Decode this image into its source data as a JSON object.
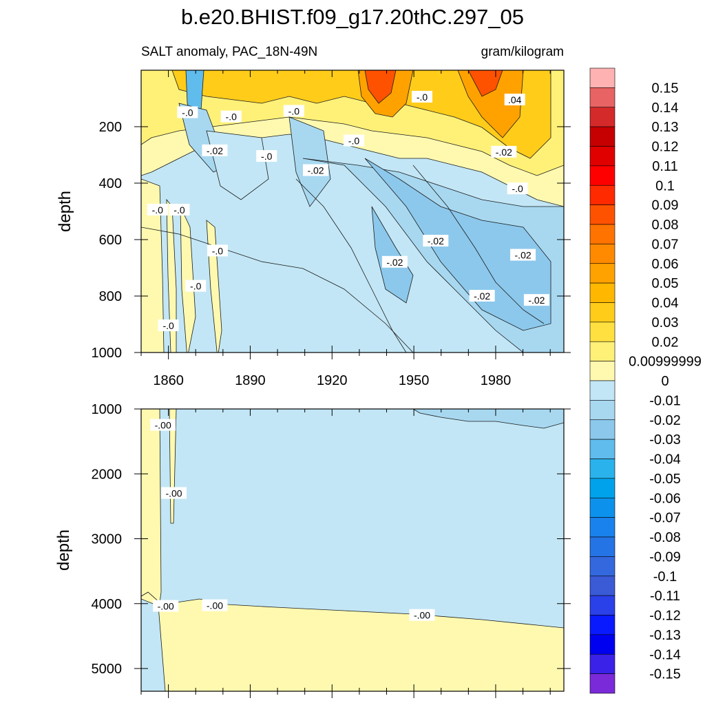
{
  "title": "b.e20.BHIST.f09_g17.20thC.297_05",
  "chart_data": [
    {
      "type": "heatmap",
      "panel": "upper",
      "subtitle_left": "SALT anomaly, PAC_18N-49N",
      "subtitle_right": "gram/kilogram",
      "ylabel": "depth",
      "xlabel": "",
      "xlim": [
        1850,
        2005
      ],
      "ylim": [
        1000,
        0
      ],
      "x_ticks": [
        "1860",
        "1890",
        "1920",
        "1950",
        "1980"
      ],
      "y_ticks": [
        "200",
        "400",
        "600",
        "800",
        "1000"
      ],
      "contour_labels": [
        {
          "text": "-.0",
          "x": 1867,
          "y": 150
        },
        {
          "text": "-.0",
          "x": 1883,
          "y": 165
        },
        {
          "text": "-.0",
          "x": 1906,
          "y": 145
        },
        {
          "text": "-.0",
          "x": 1953,
          "y": 95
        },
        {
          "text": ".04",
          "x": 1987,
          "y": 105
        },
        {
          "text": "-.02",
          "x": 1877,
          "y": 285
        },
        {
          "text": "-.0",
          "x": 1896,
          "y": 305
        },
        {
          "text": "-.0",
          "x": 1928,
          "y": 250
        },
        {
          "text": "-.02",
          "x": 1914,
          "y": 355
        },
        {
          "text": "-.02",
          "x": 1983,
          "y": 290
        },
        {
          "text": "-.0",
          "x": 1988,
          "y": 420
        },
        {
          "text": "-.0",
          "x": 1856,
          "y": 495
        },
        {
          "text": "-.0",
          "x": 1864,
          "y": 495
        },
        {
          "text": "-.0",
          "x": 1878,
          "y": 640
        },
        {
          "text": "-.02",
          "x": 1943,
          "y": 680
        },
        {
          "text": "-.02",
          "x": 1958,
          "y": 605
        },
        {
          "text": "-.02",
          "x": 1990,
          "y": 655
        },
        {
          "text": "-.0",
          "x": 1870,
          "y": 765
        },
        {
          "text": "-.02",
          "x": 1975,
          "y": 800
        },
        {
          "text": "-.02",
          "x": 1995,
          "y": 815
        },
        {
          "text": "-.0",
          "x": 1860,
          "y": 905
        }
      ]
    },
    {
      "type": "heatmap",
      "panel": "lower",
      "ylabel": "depth",
      "xlabel": "",
      "xlim": [
        1850,
        2005
      ],
      "ylim": [
        5350,
        1000
      ],
      "y_ticks": [
        "1000",
        "2000",
        "3000",
        "4000",
        "5000"
      ],
      "contour_labels": [
        {
          "text": "-.00",
          "x": 1858,
          "y": 1250
        },
        {
          "text": "-.00",
          "x": 1862,
          "y": 2300
        },
        {
          "text": "-.00",
          "x": 1859,
          "y": 4040
        },
        {
          "text": "-.00",
          "x": 1877,
          "y": 4030
        },
        {
          "text": "-.00",
          "x": 1953,
          "y": 4180
        }
      ]
    }
  ],
  "colorbar": {
    "labels": [
      "0.15",
      "0.14",
      "0.13",
      "0.12",
      "0.11",
      "0.1",
      "0.09",
      "0.08",
      "0.07",
      "0.06",
      "0.05",
      "0.04",
      "0.03",
      "0.02",
      "0.00999999",
      "0",
      "-0.01",
      "-0.02",
      "-0.03",
      "-0.04",
      "-0.05",
      "-0.06",
      "-0.07",
      "-0.08",
      "-0.09",
      "-0.1",
      "-0.11",
      "-0.12",
      "-0.13",
      "-0.14",
      "-0.15"
    ],
    "colors": [
      "#ffb2b2",
      "#e86363",
      "#d42a2a",
      "#c60000",
      "#e00000",
      "#ff0000",
      "#ff2a00",
      "#ff5200",
      "#ff7300",
      "#ff8a00",
      "#ffa200",
      "#ffb700",
      "#ffcc1a",
      "#ffe040",
      "#fff178",
      "#fff9b0",
      "#c2e6f5",
      "#a8d8f0",
      "#8cc8ec",
      "#60bcec",
      "#2ab2ec",
      "#00a2ec",
      "#0c92ec",
      "#1a82ec",
      "#2474e6",
      "#3468de",
      "#3a5ad6",
      "#2a40e8",
      "#0a1aff",
      "#0000f0",
      "#3a22e8",
      "#7a2ad8"
    ]
  },
  "colors": {
    "neg_light": "#c2e6f5",
    "neg_mid": "#a8d8f0",
    "neg_deep": "#8cc8ec",
    "neg_strong": "#60bcec",
    "pos_light": "#fff9b0",
    "pos_mid": "#fff178",
    "pos_warm": "#ffcc1a",
    "pos_orange": "#ffa200",
    "pos_red": "#ff5200"
  }
}
